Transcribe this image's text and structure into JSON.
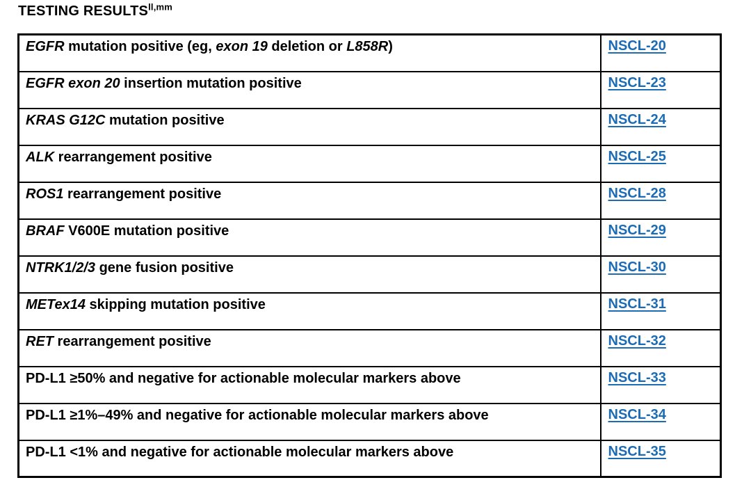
{
  "page": {
    "title": "TESTING RESULTS",
    "title_superscript": "ll,mm"
  },
  "colors": {
    "link_blue": "#1b6cb5",
    "text": "#000000",
    "border": "#000000",
    "background": "#ffffff"
  },
  "table": {
    "columns": [
      "test-result-description",
      "guideline-page-link"
    ],
    "rows": [
      {
        "segments": [
          {
            "text": "EGFR",
            "italic": true
          },
          {
            "text": " mutation positive (eg, ",
            "italic": false
          },
          {
            "text": "exon 19",
            "italic": true
          },
          {
            "text": " deletion or ",
            "italic": false
          },
          {
            "text": "L858R",
            "italic": true
          },
          {
            "text": ")",
            "italic": false
          }
        ],
        "link": "NSCL-20"
      },
      {
        "segments": [
          {
            "text": "EGFR exon 20",
            "italic": true
          },
          {
            "text": " insertion mutation positive",
            "italic": false
          }
        ],
        "link": "NSCL-23"
      },
      {
        "segments": [
          {
            "text": "KRAS G12C",
            "italic": true
          },
          {
            "text": " mutation positive",
            "italic": false
          }
        ],
        "link": "NSCL-24"
      },
      {
        "segments": [
          {
            "text": "ALK",
            "italic": true
          },
          {
            "text": " rearrangement positive",
            "italic": false
          }
        ],
        "link": "NSCL-25"
      },
      {
        "segments": [
          {
            "text": "ROS1",
            "italic": true
          },
          {
            "text": " rearrangement positive",
            "italic": false
          }
        ],
        "link": "NSCL-28"
      },
      {
        "segments": [
          {
            "text": "BRAF",
            "italic": true
          },
          {
            "text": " V600E mutation positive",
            "italic": false
          }
        ],
        "link": "NSCL-29"
      },
      {
        "segments": [
          {
            "text": "NTRK1/2/3",
            "italic": true
          },
          {
            "text": " gene fusion positive",
            "italic": false
          }
        ],
        "link": "NSCL-30"
      },
      {
        "segments": [
          {
            "text": "METex14",
            "italic": true
          },
          {
            "text": " skipping mutation positive",
            "italic": false
          }
        ],
        "link": "NSCL-31"
      },
      {
        "segments": [
          {
            "text": "RET",
            "italic": true
          },
          {
            "text": " rearrangement positive",
            "italic": false
          }
        ],
        "link": "NSCL-32"
      },
      {
        "segments": [
          {
            "text": "PD-L1 ≥50% and negative for actionable molecular markers above",
            "italic": false
          }
        ],
        "link": "NSCL-33"
      },
      {
        "segments": [
          {
            "text": "PD-L1 ≥1%–49% and negative for actionable molecular markers above",
            "italic": false
          }
        ],
        "link": "NSCL-34"
      },
      {
        "segments": [
          {
            "text": "PD-L1 <1% and negative for actionable molecular markers above",
            "italic": false
          }
        ],
        "link": "NSCL-35"
      }
    ]
  }
}
